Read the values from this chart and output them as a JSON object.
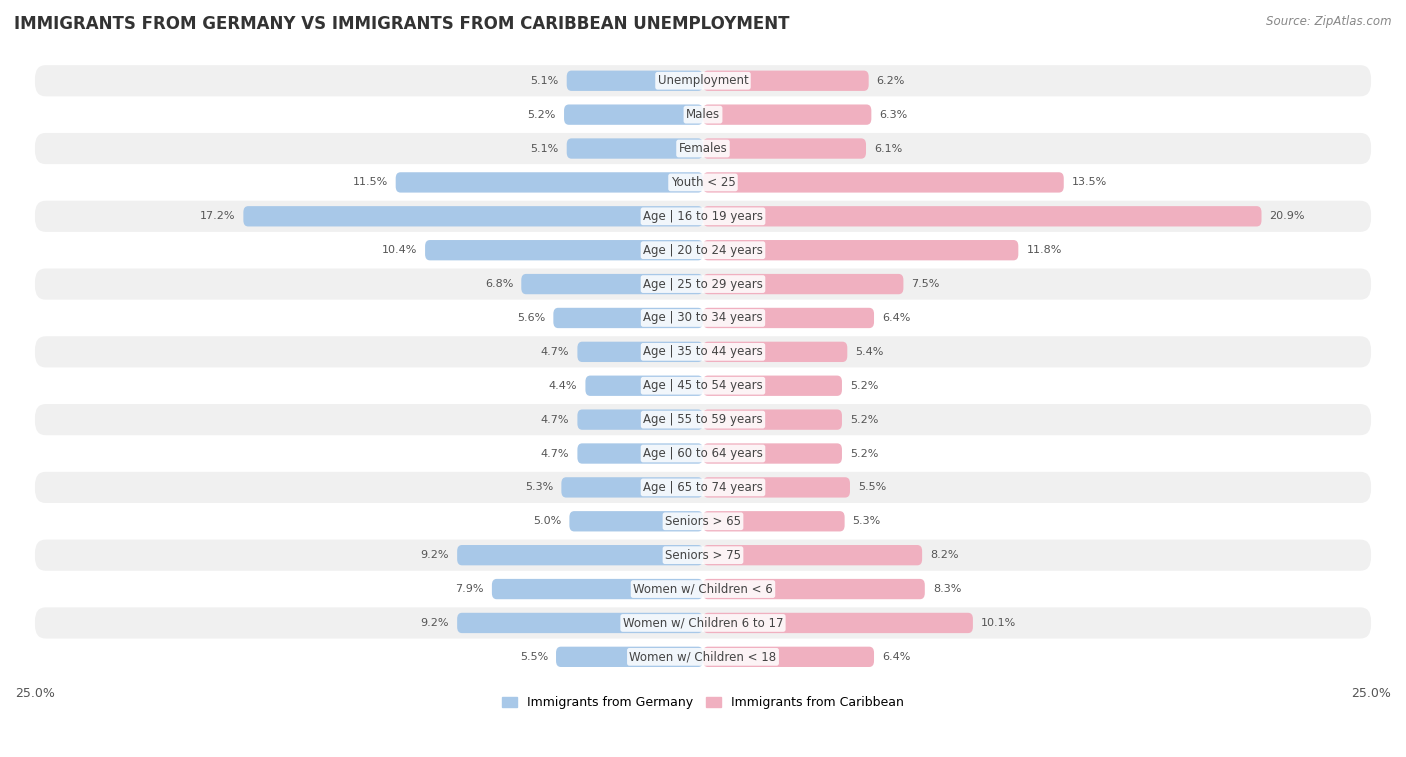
{
  "title": "IMMIGRANTS FROM GERMANY VS IMMIGRANTS FROM CARIBBEAN UNEMPLOYMENT",
  "source": "Source: ZipAtlas.com",
  "categories": [
    "Unemployment",
    "Males",
    "Females",
    "Youth < 25",
    "Age | 16 to 19 years",
    "Age | 20 to 24 years",
    "Age | 25 to 29 years",
    "Age | 30 to 34 years",
    "Age | 35 to 44 years",
    "Age | 45 to 54 years",
    "Age | 55 to 59 years",
    "Age | 60 to 64 years",
    "Age | 65 to 74 years",
    "Seniors > 65",
    "Seniors > 75",
    "Women w/ Children < 6",
    "Women w/ Children 6 to 17",
    "Women w/ Children < 18"
  ],
  "germany_values": [
    5.1,
    5.2,
    5.1,
    11.5,
    17.2,
    10.4,
    6.8,
    5.6,
    4.7,
    4.4,
    4.7,
    4.7,
    5.3,
    5.0,
    9.2,
    7.9,
    9.2,
    5.5
  ],
  "caribbean_values": [
    6.2,
    6.3,
    6.1,
    13.5,
    20.9,
    11.8,
    7.5,
    6.4,
    5.4,
    5.2,
    5.2,
    5.2,
    5.5,
    5.3,
    8.2,
    8.3,
    10.1,
    6.4
  ],
  "germany_color": "#a8c8e8",
  "caribbean_color": "#f0b0c0",
  "row_even_color": "#f0f0f0",
  "row_odd_color": "#ffffff",
  "background_color": "#ffffff",
  "axis_max": 25.0,
  "legend_germany": "Immigrants from Germany",
  "legend_caribbean": "Immigrants from Caribbean",
  "title_fontsize": 12,
  "source_fontsize": 8.5,
  "label_fontsize": 8.5,
  "value_fontsize": 8.0,
  "bar_height": 0.6
}
